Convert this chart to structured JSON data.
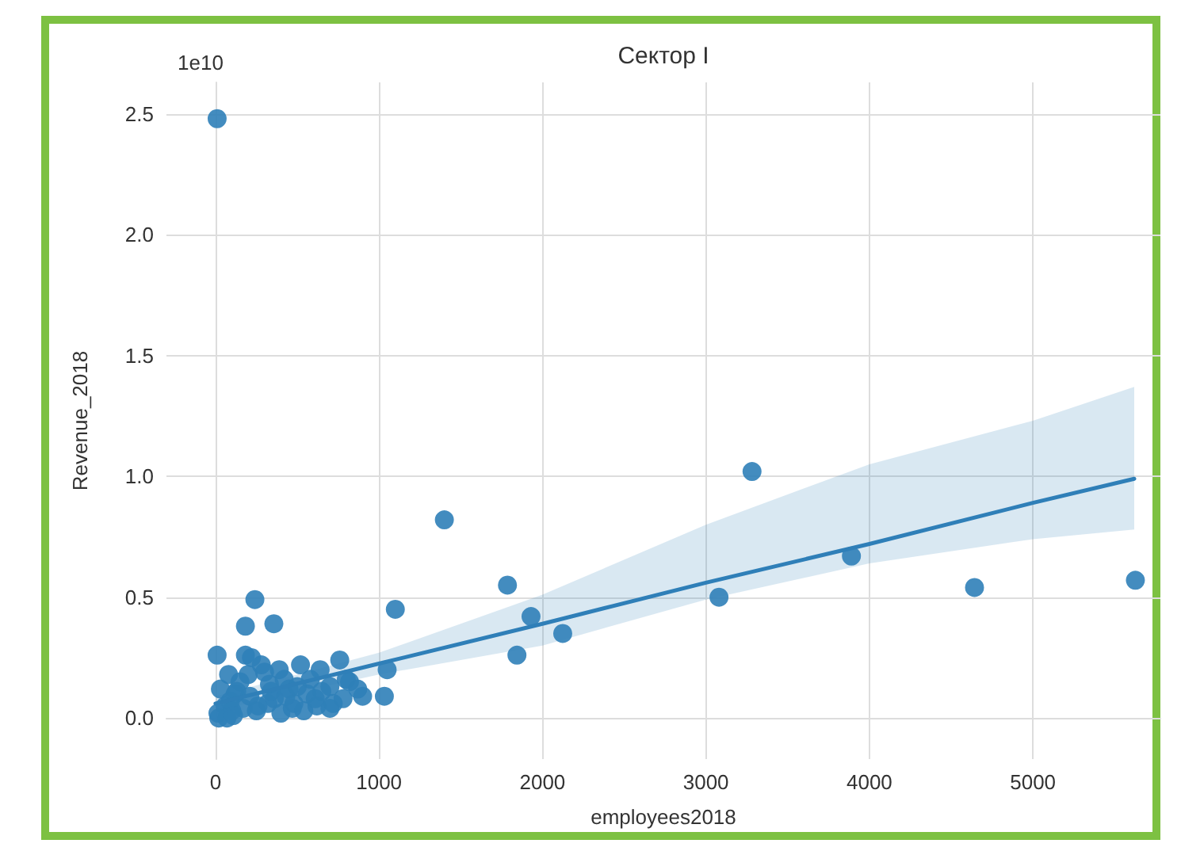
{
  "chart_data": {
    "type": "scatter",
    "title": "Сектор I",
    "xlabel": "employees2018",
    "ylabel": "Revenue_2018",
    "annotations": [
      "1e10"
    ],
    "xlim": [
      -300,
      5780
    ],
    "xticks": [
      0,
      1000,
      2000,
      3000,
      4000,
      5000
    ],
    "ylim": [
      -0.17,
      2.63
    ],
    "yticks": [
      {
        "value": 0,
        "label": "0.0"
      },
      0.5,
      {
        "value": 1,
        "label": "1.0"
      },
      1.5,
      {
        "value": 2,
        "label": "2.0"
      },
      2.5
    ],
    "grid": true,
    "marker": "circle",
    "series": [
      {
        "type": "scatter",
        "color": "#2f7fb8",
        "x": [
          10,
          1400,
          1100,
          1786,
          1930,
          1844,
          2124,
          3080,
          3282,
          3890,
          4643,
          5627,
          1033,
          1050,
          241,
          357,
          183,
          10,
          183,
          60,
          120,
          200,
          280,
          330,
          390,
          450,
          520,
          580,
          640,
          700,
          760,
          820,
          900,
          30,
          80,
          150,
          220,
          300,
          360,
          420,
          480,
          560,
          620,
          700,
          780,
          100,
          170,
          250,
          320,
          400,
          470,
          540,
          610,
          15,
          90,
          130,
          210,
          260,
          340,
          430,
          500,
          650,
          720,
          800,
          870,
          20,
          70,
          110
        ],
        "values": [
          2.48,
          0.82,
          0.45,
          0.55,
          0.42,
          0.26,
          0.35,
          0.5,
          1.02,
          0.67,
          0.54,
          0.57,
          0.09,
          0.2,
          0.49,
          0.39,
          0.38,
          0.26,
          0.26,
          0.05,
          0.1,
          0.18,
          0.22,
          0.14,
          0.2,
          0.12,
          0.22,
          0.16,
          0.2,
          0.13,
          0.24,
          0.15,
          0.09,
          0.12,
          0.18,
          0.15,
          0.25,
          0.19,
          0.08,
          0.16,
          0.06,
          0.1,
          0.05,
          0.04,
          0.08,
          0.03,
          0.04,
          0.03,
          0.06,
          0.02,
          0.04,
          0.03,
          0.08,
          0.02,
          0.07,
          0.11,
          0.09,
          0.05,
          0.11,
          0.09,
          0.13,
          0.11,
          0.06,
          0.16,
          0.12,
          0.0,
          0.0,
          0.01
        ]
      },
      {
        "type": "line",
        "color": "#2f7fb8",
        "marker": "none",
        "x": [
          0,
          1000,
          2000,
          3000,
          4000,
          5000,
          5620
        ],
        "values": [
          0.06,
          0.225,
          0.39,
          0.56,
          0.72,
          0.89,
          0.99
        ],
        "lower": [
          0.03,
          0.18,
          0.3,
          0.49,
          0.64,
          0.74,
          0.78
        ],
        "upper": [
          0.09,
          0.27,
          0.51,
          0.8,
          1.05,
          1.23,
          1.37
        ]
      }
    ]
  }
}
